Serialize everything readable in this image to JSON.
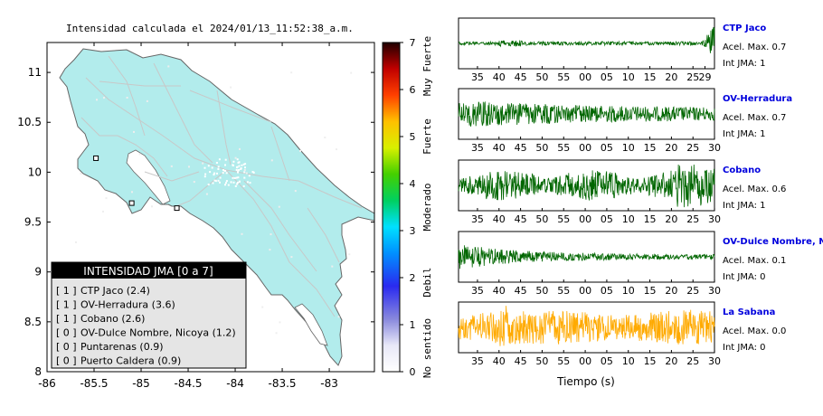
{
  "map": {
    "title": "Intensidad calculada el 2024/01/13_11:52:38_a.m.",
    "x_ticks": [
      "-86",
      "-85.5",
      "-85",
      "-84.5",
      "-84",
      "-83.5",
      "-83"
    ],
    "y_ticks": [
      "11",
      "10.5",
      "10",
      "9.5",
      "9",
      "8.5",
      "8"
    ],
    "xlim": [
      -86,
      -82.52
    ],
    "ylim": [
      8,
      11.3
    ],
    "land_color": "#b2ecec",
    "colorbar": {
      "ticks": [
        "0",
        "1",
        "2",
        "3",
        "4",
        "5",
        "6",
        "7"
      ],
      "level_labels": [
        "No sentido",
        "Debil",
        "Moderado",
        "Fuerte",
        "Muy Fuerte"
      ]
    },
    "legend": {
      "title": "INTENSIDAD JMA [0 a 7]",
      "items": [
        {
          "level": "[ 1 ]",
          "name": "CTP Jaco (2.4)"
        },
        {
          "level": "[ 1 ]",
          "name": "OV-Herradura (3.6)"
        },
        {
          "level": "[ 1 ]",
          "name": "Cobano (2.6)"
        },
        {
          "level": "[ 0 ]",
          "name": "OV-Dulce Nombre, Nicoya (1.2)"
        },
        {
          "level": "[ 0 ]",
          "name": "Puntarenas (0.9)"
        },
        {
          "level": "[ 0 ]",
          "name": "Puerto Caldera (0.9)"
        }
      ]
    },
    "stations": [
      {
        "name": "CTP Jaco",
        "lon": -84.62,
        "lat": 9.64
      },
      {
        "name": "Cobano",
        "lon": -85.1,
        "lat": 9.69
      },
      {
        "name": "OV-Dulce Nombre, Nicoya",
        "lon": -85.48,
        "lat": 10.14
      }
    ]
  },
  "chart_data": {
    "type": "line",
    "xlabel": "Tiempo (s)",
    "x_tick_labels": [
      "35",
      "40",
      "45",
      "50",
      "55",
      "00",
      "05",
      "10",
      "15",
      "20",
      "25",
      "30"
    ],
    "panels": [
      {
        "name": "CTP Jaco",
        "acel": "Acel. Max. 0.7",
        "jma": "Int JMA: 1",
        "color": "#006600",
        "amplitude": 0.7,
        "last_tick": "29"
      },
      {
        "name": "OV-Herradura",
        "acel": "Acel. Max. 0.7",
        "jma": "Int JMA: 1",
        "color": "#006600",
        "amplitude": 0.7,
        "last_tick": "30"
      },
      {
        "name": "Cobano",
        "acel": "Acel. Max. 0.6",
        "jma": "Int JMA: 1",
        "color": "#006600",
        "amplitude": 0.6,
        "last_tick": "30"
      },
      {
        "name": "OV-Dulce Nombre, Nicoya",
        "acel": "Acel. Max. 0.1",
        "jma": "Int JMA: 0",
        "color": "#006600",
        "amplitude": 0.1,
        "last_tick": "30"
      },
      {
        "name": "La Sabana",
        "acel": "Acel. Max. 0.0",
        "jma": "Int JMA: 0",
        "color": "#ffaa00",
        "amplitude": 0.0,
        "last_tick": "30"
      }
    ]
  }
}
